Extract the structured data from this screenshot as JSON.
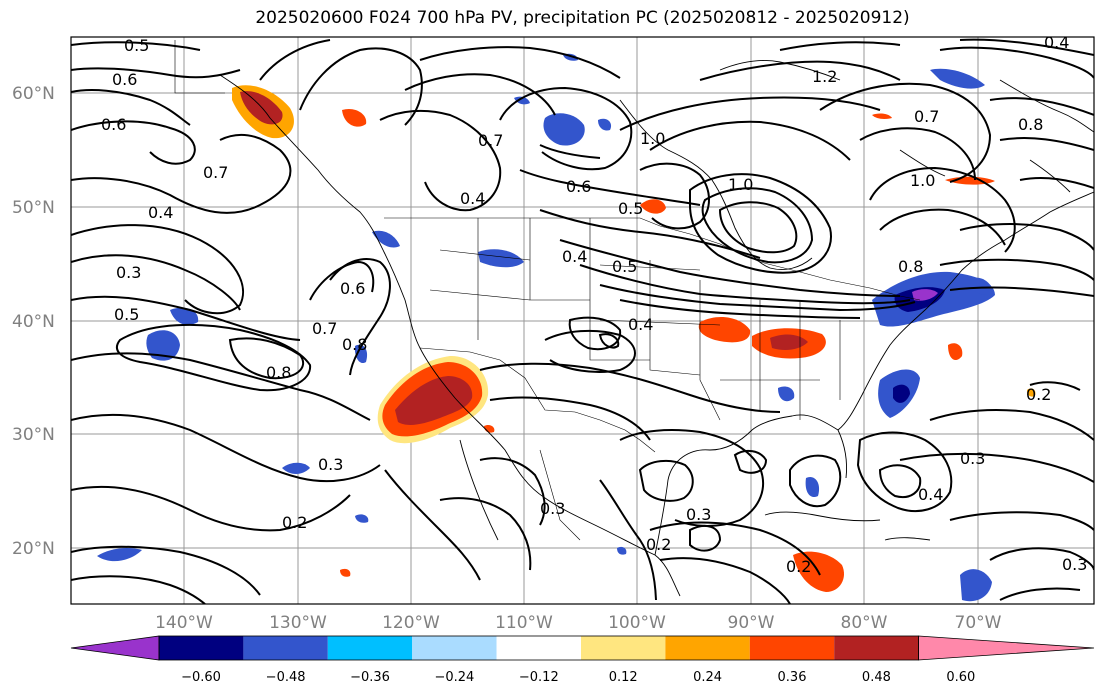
{
  "title": "2025020600 F024 700 hPa PV, precipitation PC (2025020812 - 2025020912)",
  "lat_labels": [
    "60°N",
    "50°N",
    "40°N",
    "30°N",
    "20°N"
  ],
  "lon_labels": [
    "140°W",
    "130°W",
    "120°W",
    "110°W",
    "100°W",
    "90°W",
    "80°W",
    "70°W"
  ],
  "contour_labels": [
    "0.5",
    "0.6",
    "0.6",
    "0.7",
    "0.4",
    "0.3",
    "0.5",
    "0.7",
    "0.8",
    "0.8",
    "0.6",
    "0.3",
    "0.2",
    "0.7",
    "0.4",
    "0.6",
    "0.5",
    "1.0",
    "1.0",
    "0.4",
    "0.5",
    "0.4",
    "1.2",
    "0.7",
    "0.8",
    "1.0",
    "0.8",
    "0.2",
    "0.3",
    "0.3",
    "0.2",
    "0.3",
    "0.2",
    "0.4",
    "0.3",
    "0.4"
  ],
  "colorbar": {
    "ticks": [
      "−0.60",
      "−0.48",
      "−0.36",
      "−0.24",
      "−0.12",
      "0.12",
      "0.24",
      "0.36",
      "0.48",
      "0.60"
    ],
    "colors": [
      "#9933cc",
      "#000080",
      "#3355cc",
      "#00bfff",
      "#aadcff",
      "#ffffff",
      "#ffe680",
      "#ffa500",
      "#ff4500",
      "#b22222",
      "#ff88aa"
    ]
  },
  "map_data": {
    "type": "contour+filled",
    "domain_lon": [
      -150,
      -59
    ],
    "domain_lat": [
      15,
      65
    ],
    "contour_field": "700 hPa PV",
    "filled_field": "precipitation PC"
  }
}
